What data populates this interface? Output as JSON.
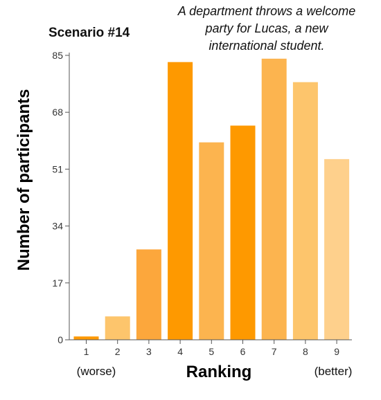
{
  "chart_data": {
    "type": "bar",
    "title": "Scenario #14",
    "subtitle": [
      "A department throws a welcome",
      "party for Lucas, a new",
      "international student."
    ],
    "xlabel": "Ranking",
    "ylabel": "Number of participants",
    "x_low_note": "(worse)",
    "x_high_note": "(better)",
    "categories": [
      "1",
      "2",
      "3",
      "4",
      "5",
      "6",
      "7",
      "8",
      "9"
    ],
    "values": [
      1,
      7,
      27,
      83,
      59,
      64,
      84,
      77,
      54
    ],
    "colors": [
      "#fe9900",
      "#fdc56c",
      "#fca73c",
      "#fe9900",
      "#fcb44f",
      "#fe9900",
      "#fcb44f",
      "#fdc56c",
      "#fed08c"
    ],
    "yticks": [
      0,
      17,
      34,
      51,
      68,
      85
    ],
    "ylim": [
      0,
      85
    ],
    "grid": false
  }
}
